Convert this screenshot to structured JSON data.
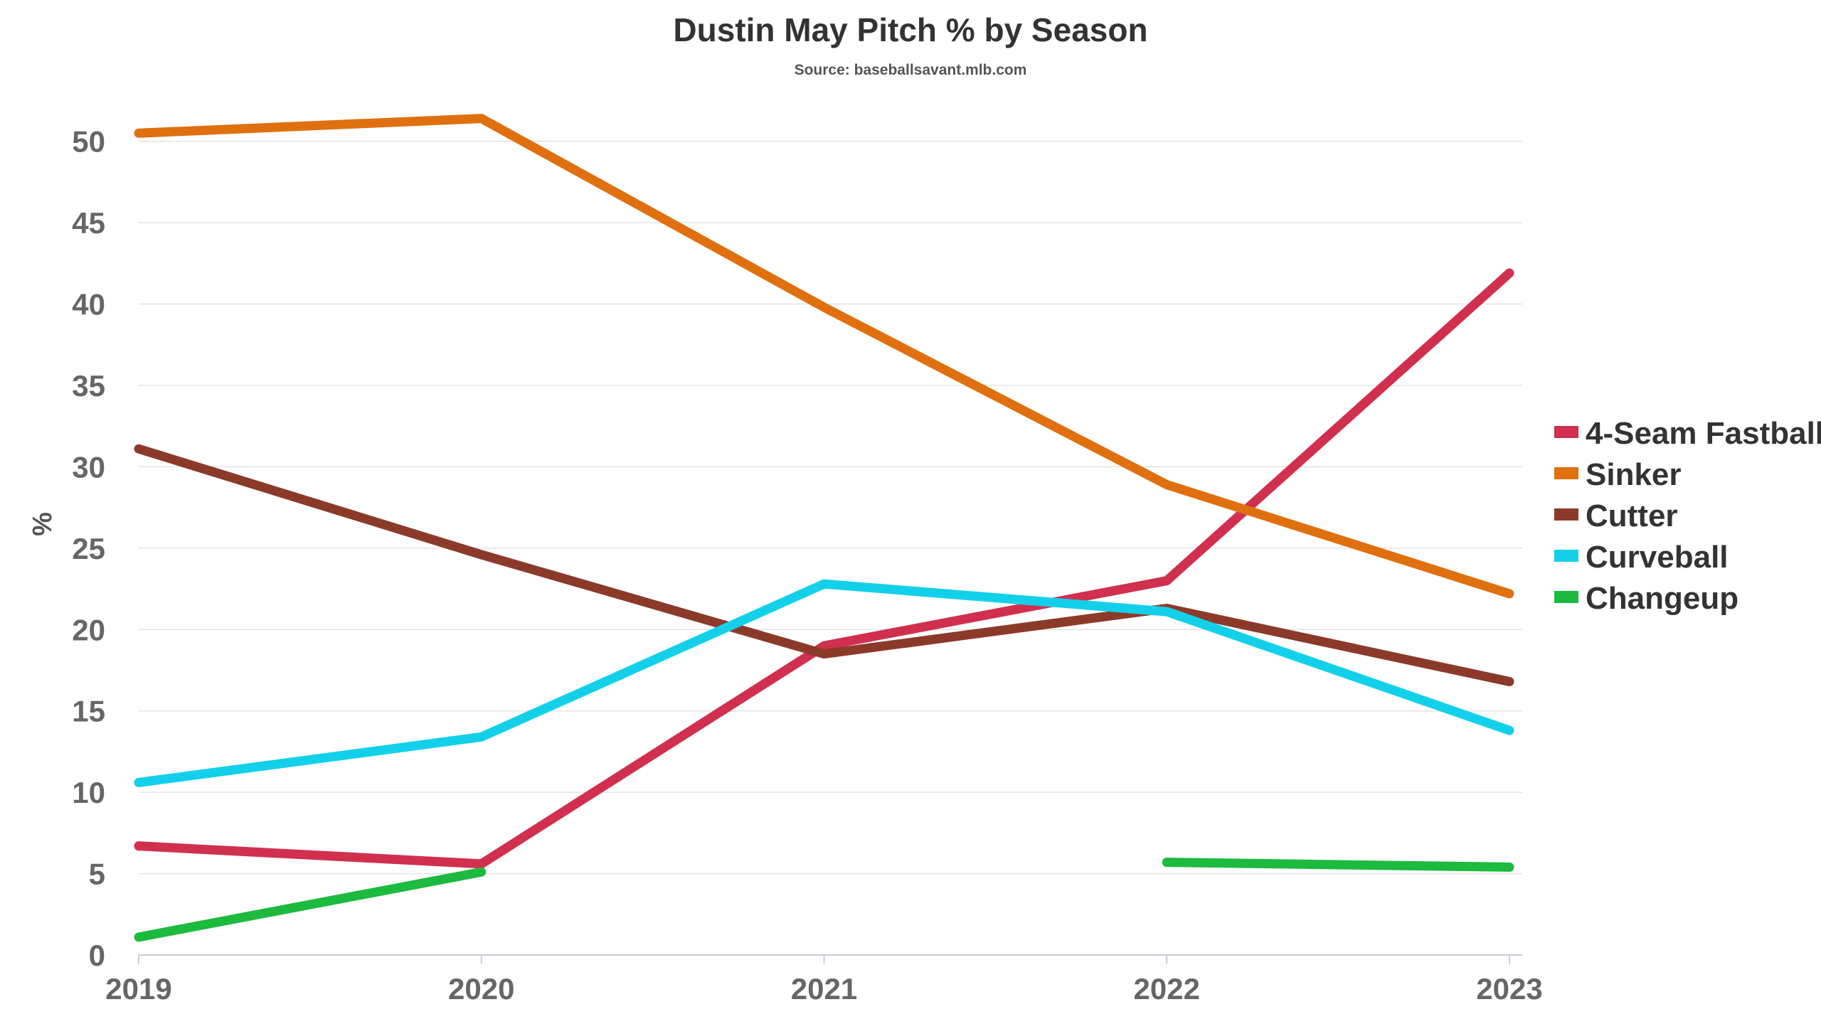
{
  "chart_data": {
    "type": "line",
    "title": "Dustin May Pitch % by Season",
    "subtitle": "Source: baseballsavant.mlb.com",
    "xlabel": "",
    "ylabel": "%",
    "categories": [
      "2019",
      "2020",
      "2021",
      "2022",
      "2023"
    ],
    "ylim": [
      0,
      53
    ],
    "yticks": [
      0,
      5,
      10,
      15,
      20,
      25,
      30,
      35,
      40,
      45,
      50
    ],
    "grid": true,
    "legend_position": "right",
    "series": [
      {
        "name": "4-Seam Fastball",
        "color": "#d0304e",
        "values": [
          6.7,
          5.6,
          19.0,
          23.0,
          41.9
        ]
      },
      {
        "name": "Sinker",
        "color": "#e0700f",
        "values": [
          50.5,
          51.4,
          39.8,
          28.9,
          22.2
        ]
      },
      {
        "name": "Cutter",
        "color": "#8b3a2a",
        "values": [
          31.1,
          24.6,
          18.5,
          21.3,
          16.8
        ]
      },
      {
        "name": "Curveball",
        "color": "#13d0ea",
        "values": [
          10.6,
          13.4,
          22.8,
          21.1,
          13.8
        ]
      },
      {
        "name": "Changeup",
        "color": "#1cba3e",
        "values": [
          1.1,
          5.1,
          null,
          5.7,
          5.4
        ]
      }
    ]
  }
}
